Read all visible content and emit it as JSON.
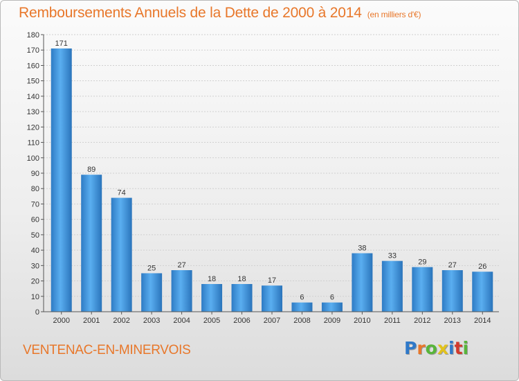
{
  "header": {
    "title": "Remboursements Annuels de la Dette de 2000 à 2014",
    "unit": "(en milliers d'€)"
  },
  "footer": {
    "place": "VENTENAC-EN-MINERVOIS",
    "logo": {
      "letters": [
        "P",
        "r",
        "o",
        "x",
        "i",
        "t",
        "i"
      ],
      "colors": [
        "#2f79c9",
        "#e8772a",
        "#58b53a",
        "#e2c21c",
        "#2f79c9",
        "#d23a2c",
        "#58b53a"
      ]
    }
  },
  "chart_data": {
    "type": "bar",
    "title": "Remboursements Annuels de la Dette de 2000 à 2014",
    "xlabel": "",
    "ylabel": "",
    "categories": [
      "2000",
      "2001",
      "2002",
      "2003",
      "2004",
      "2005",
      "2006",
      "2007",
      "2008",
      "2009",
      "2010",
      "2011",
      "2012",
      "2013",
      "2014"
    ],
    "values": [
      171,
      89,
      74,
      25,
      27,
      18,
      18,
      17,
      6,
      6,
      38,
      33,
      29,
      27,
      26
    ],
    "ylim": [
      0,
      180
    ],
    "yticks": [
      0,
      10,
      20,
      30,
      40,
      50,
      60,
      70,
      80,
      90,
      100,
      110,
      120,
      130,
      140,
      150,
      160,
      170,
      180
    ],
    "grid": true,
    "legend": "none",
    "bar_color": "#3b8fd9"
  }
}
